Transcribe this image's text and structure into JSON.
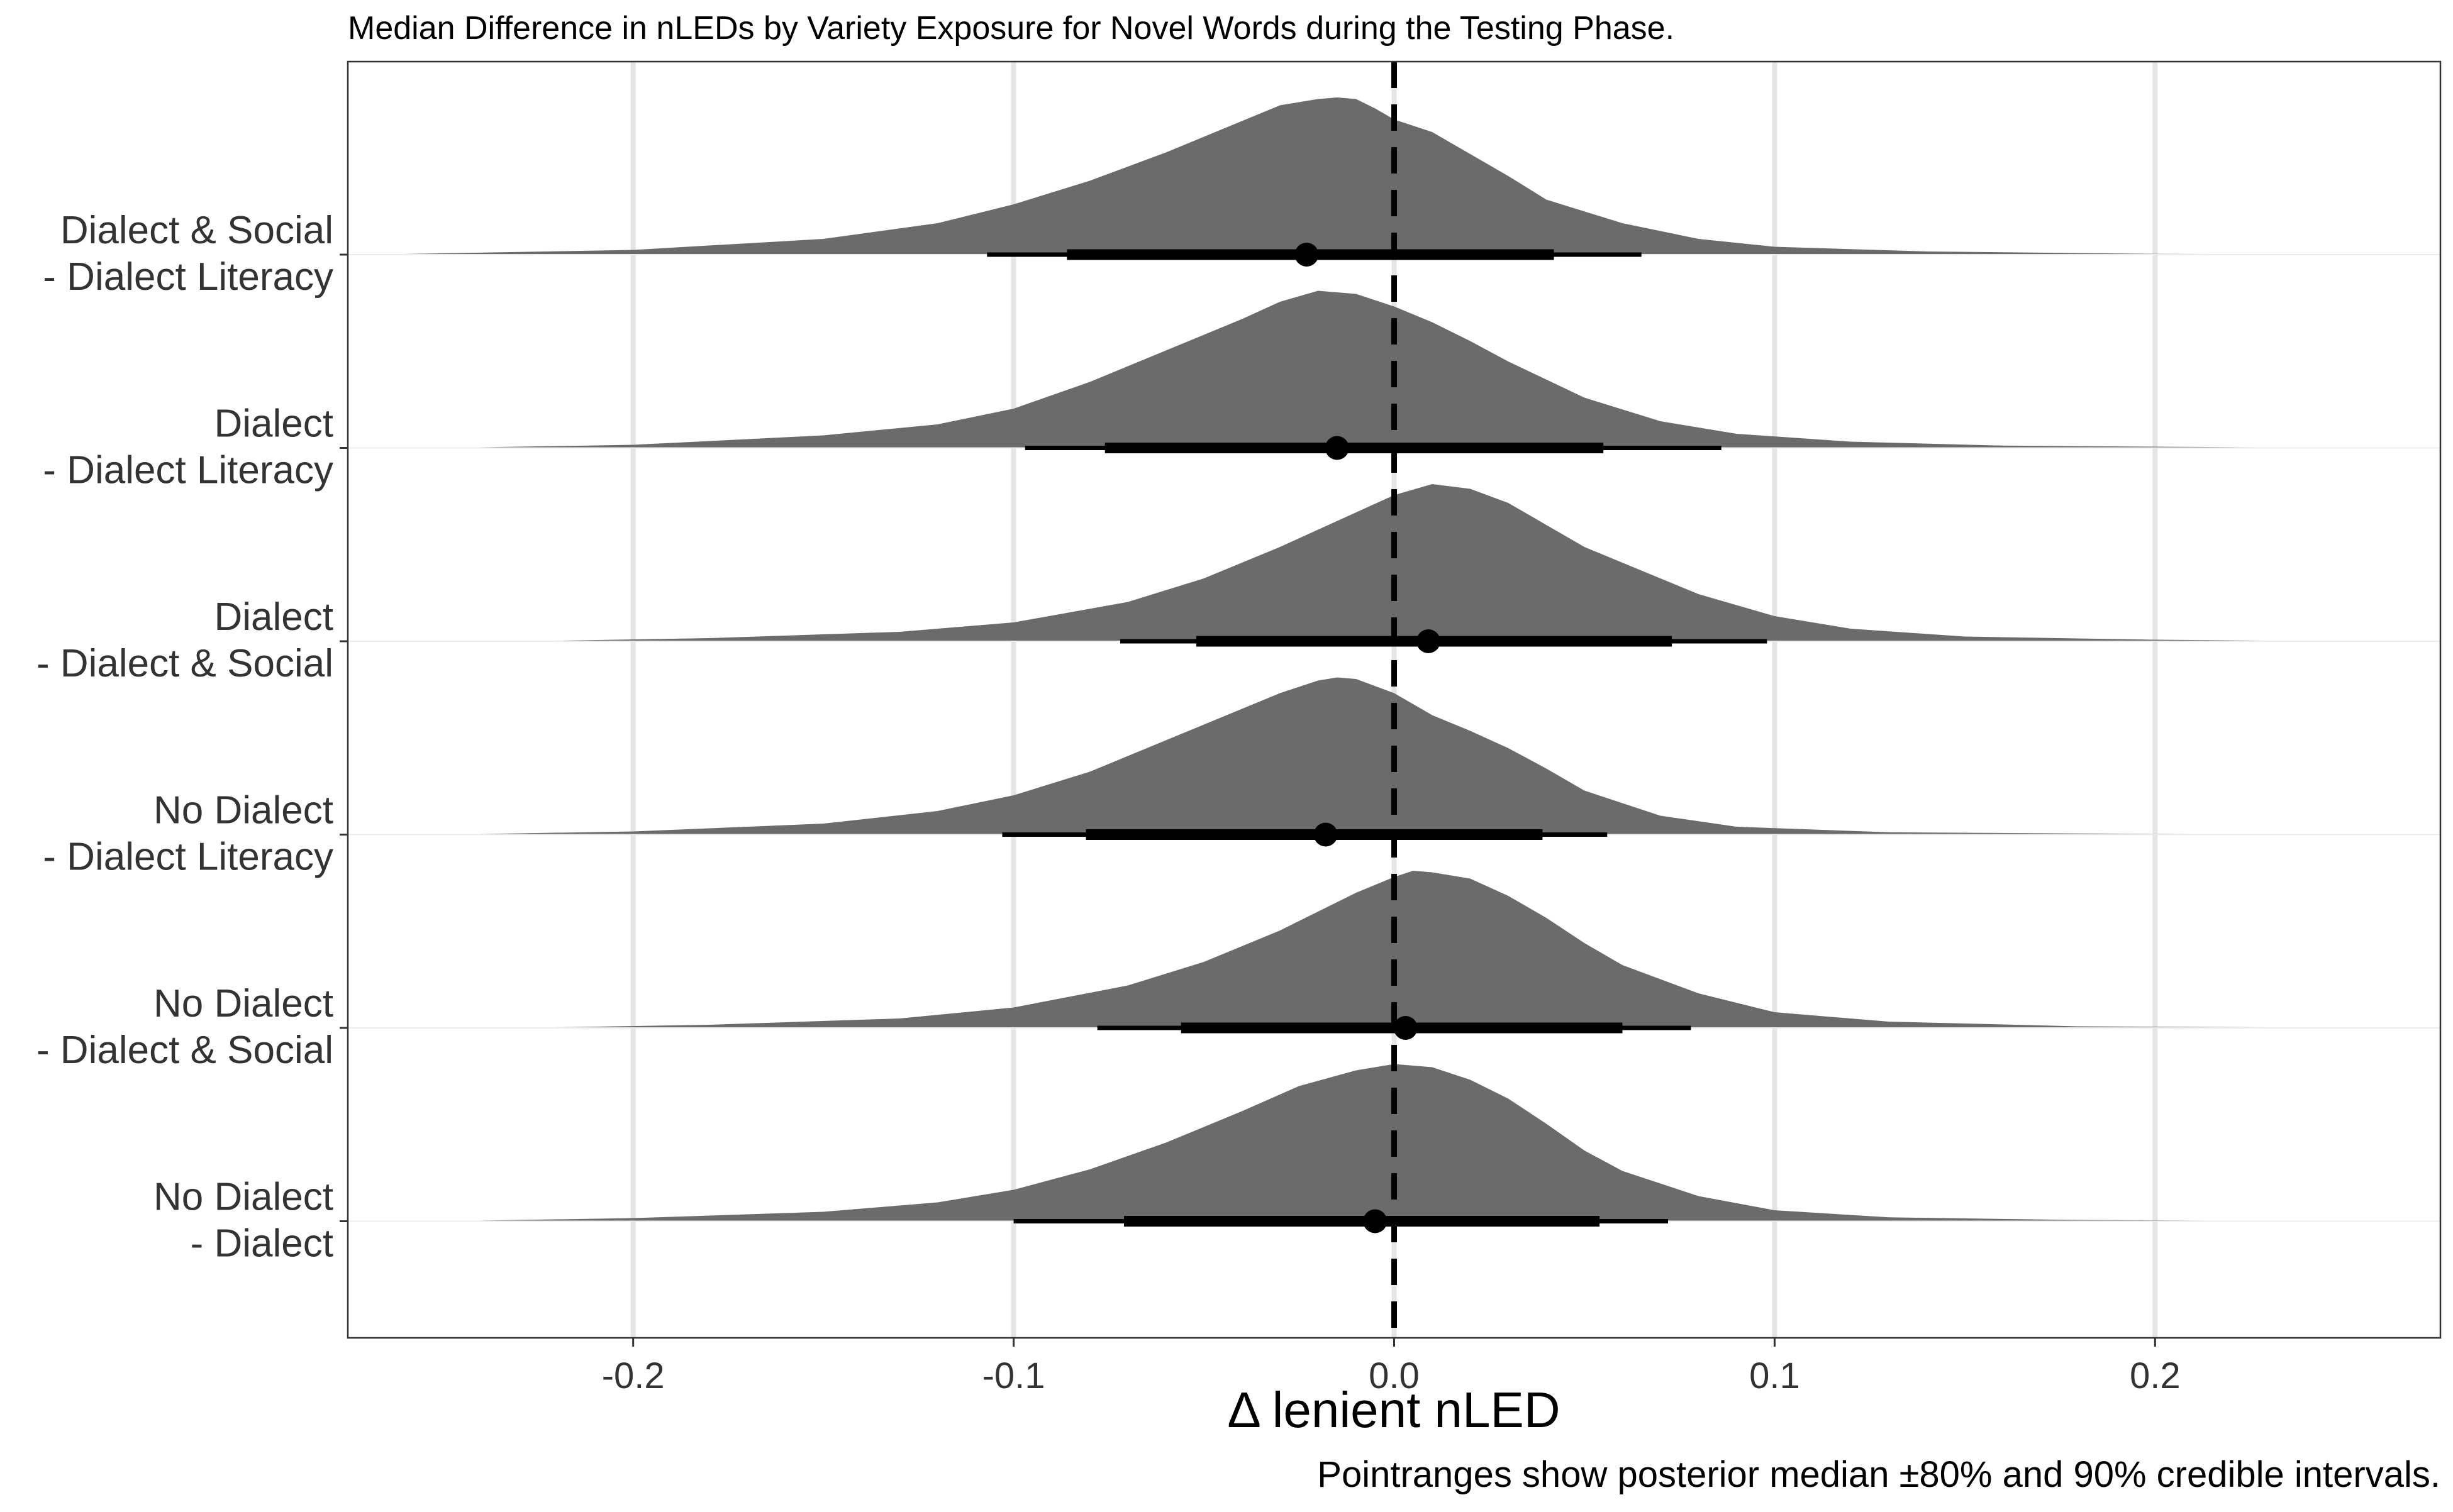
{
  "chart_data": {
    "type": "density-halfeye",
    "title": "Median Difference in nLEDs by Variety Exposure for Novel Words during the Testing Phase.",
    "xlabel": "Δ lenient nLED",
    "ylabel": "",
    "caption": "Pointranges show posterior median ±80% and 90% credible intervals.",
    "xlim": [
      -0.275,
      0.275
    ],
    "x_ticks": [
      -0.2,
      -0.1,
      0.0,
      0.1,
      0.2
    ],
    "x_tick_labels": [
      "-0.2",
      "-0.1",
      "0.0",
      "0.1",
      "0.2"
    ],
    "reference_line": {
      "x": 0.0,
      "style": "dashed"
    },
    "grid": {
      "vertical_major": true,
      "horizontal": false
    },
    "colors": {
      "density_fill": "#6b6b6b",
      "pointrange": "#000000",
      "grid": "#e5e5e5"
    },
    "series": [
      {
        "label_line1": "Dialect & Social",
        "label_line2": "- Dialect Literacy",
        "median": -0.023,
        "ci80": [
          -0.086,
          0.042
        ],
        "ci90": [
          -0.107,
          0.065
        ],
        "density": [
          [
            -0.27,
            0.0
          ],
          [
            -0.2,
            0.03
          ],
          [
            -0.15,
            0.1
          ],
          [
            -0.12,
            0.2
          ],
          [
            -0.1,
            0.32
          ],
          [
            -0.08,
            0.47
          ],
          [
            -0.06,
            0.65
          ],
          [
            -0.04,
            0.85
          ],
          [
            -0.03,
            0.95
          ],
          [
            -0.02,
            0.99
          ],
          [
            -0.015,
            1.0
          ],
          [
            -0.01,
            0.99
          ],
          [
            -0.005,
            0.93
          ],
          [
            0.0,
            0.86
          ],
          [
            0.01,
            0.78
          ],
          [
            0.02,
            0.64
          ],
          [
            0.03,
            0.5
          ],
          [
            0.04,
            0.35
          ],
          [
            0.06,
            0.2
          ],
          [
            0.08,
            0.1
          ],
          [
            0.1,
            0.05
          ],
          [
            0.14,
            0.02
          ],
          [
            0.2,
            0.005
          ],
          [
            0.27,
            0.0
          ]
        ]
      },
      {
        "label_line1": "Dialect",
        "label_line2": "- Dialect Literacy",
        "median": -0.015,
        "ci80": [
          -0.076,
          0.055
        ],
        "ci90": [
          -0.097,
          0.086
        ],
        "density": [
          [
            -0.25,
            0.0
          ],
          [
            -0.2,
            0.02
          ],
          [
            -0.15,
            0.08
          ],
          [
            -0.12,
            0.15
          ],
          [
            -0.1,
            0.25
          ],
          [
            -0.08,
            0.42
          ],
          [
            -0.06,
            0.62
          ],
          [
            -0.04,
            0.82
          ],
          [
            -0.03,
            0.93
          ],
          [
            -0.02,
            1.0
          ],
          [
            -0.01,
            0.98
          ],
          [
            0.0,
            0.9
          ],
          [
            0.01,
            0.8
          ],
          [
            0.02,
            0.68
          ],
          [
            0.03,
            0.55
          ],
          [
            0.05,
            0.32
          ],
          [
            0.07,
            0.17
          ],
          [
            0.09,
            0.09
          ],
          [
            0.12,
            0.04
          ],
          [
            0.16,
            0.015
          ],
          [
            0.22,
            0.005
          ],
          [
            0.27,
            0.0
          ]
        ]
      },
      {
        "label_line1": "Dialect",
        "label_line2": "- Dialect & Social",
        "median": 0.009,
        "ci80": [
          -0.052,
          0.073
        ],
        "ci90": [
          -0.072,
          0.098
        ],
        "density": [
          [
            -0.23,
            0.0
          ],
          [
            -0.18,
            0.02
          ],
          [
            -0.13,
            0.06
          ],
          [
            -0.1,
            0.12
          ],
          [
            -0.07,
            0.25
          ],
          [
            -0.05,
            0.4
          ],
          [
            -0.03,
            0.6
          ],
          [
            -0.01,
            0.82
          ],
          [
            0.0,
            0.93
          ],
          [
            0.01,
            1.0
          ],
          [
            0.02,
            0.97
          ],
          [
            0.03,
            0.88
          ],
          [
            0.04,
            0.74
          ],
          [
            0.05,
            0.6
          ],
          [
            0.07,
            0.4
          ],
          [
            0.08,
            0.3
          ],
          [
            0.1,
            0.16
          ],
          [
            0.12,
            0.08
          ],
          [
            0.15,
            0.03
          ],
          [
            0.2,
            0.01
          ],
          [
            0.25,
            0.0
          ]
        ]
      },
      {
        "label_line1": "No Dialect",
        "label_line2": "- Dialect Literacy",
        "median": -0.018,
        "ci80": [
          -0.081,
          0.039
        ],
        "ci90": [
          -0.103,
          0.056
        ],
        "density": [
          [
            -0.25,
            0.0
          ],
          [
            -0.2,
            0.02
          ],
          [
            -0.15,
            0.07
          ],
          [
            -0.12,
            0.15
          ],
          [
            -0.1,
            0.25
          ],
          [
            -0.08,
            0.4
          ],
          [
            -0.06,
            0.6
          ],
          [
            -0.04,
            0.8
          ],
          [
            -0.03,
            0.9
          ],
          [
            -0.02,
            0.98
          ],
          [
            -0.015,
            1.0
          ],
          [
            -0.01,
            0.99
          ],
          [
            0.0,
            0.9
          ],
          [
            0.01,
            0.76
          ],
          [
            0.02,
            0.66
          ],
          [
            0.03,
            0.55
          ],
          [
            0.04,
            0.42
          ],
          [
            0.05,
            0.28
          ],
          [
            0.07,
            0.12
          ],
          [
            0.09,
            0.05
          ],
          [
            0.13,
            0.015
          ],
          [
            0.2,
            0.005
          ],
          [
            0.25,
            0.0
          ]
        ]
      },
      {
        "label_line1": "No Dialect",
        "label_line2": "- Dialect & Social",
        "median": 0.003,
        "ci80": [
          -0.056,
          0.06
        ],
        "ci90": [
          -0.078,
          0.078
        ],
        "density": [
          [
            -0.23,
            0.0
          ],
          [
            -0.18,
            0.02
          ],
          [
            -0.13,
            0.06
          ],
          [
            -0.1,
            0.13
          ],
          [
            -0.07,
            0.27
          ],
          [
            -0.05,
            0.42
          ],
          [
            -0.03,
            0.62
          ],
          [
            -0.01,
            0.86
          ],
          [
            0.0,
            0.96
          ],
          [
            0.005,
            1.0
          ],
          [
            0.01,
            0.99
          ],
          [
            0.02,
            0.95
          ],
          [
            0.03,
            0.84
          ],
          [
            0.04,
            0.7
          ],
          [
            0.05,
            0.54
          ],
          [
            0.06,
            0.4
          ],
          [
            0.08,
            0.22
          ],
          [
            0.1,
            0.1
          ],
          [
            0.13,
            0.04
          ],
          [
            0.18,
            0.01
          ],
          [
            0.26,
            0.0
          ]
        ]
      },
      {
        "label_line1": "No Dialect",
        "label_line2": "- Dialect",
        "median": -0.005,
        "ci80": [
          -0.071,
          0.054
        ],
        "ci90": [
          -0.1,
          0.072
        ],
        "density": [
          [
            -0.25,
            0.0
          ],
          [
            -0.2,
            0.02
          ],
          [
            -0.15,
            0.06
          ],
          [
            -0.12,
            0.12
          ],
          [
            -0.1,
            0.2
          ],
          [
            -0.08,
            0.33
          ],
          [
            -0.06,
            0.5
          ],
          [
            -0.04,
            0.7
          ],
          [
            -0.025,
            0.86
          ],
          [
            -0.01,
            0.96
          ],
          [
            0.0,
            1.0
          ],
          [
            0.01,
            0.98
          ],
          [
            0.02,
            0.9
          ],
          [
            0.03,
            0.78
          ],
          [
            0.04,
            0.62
          ],
          [
            0.05,
            0.45
          ],
          [
            0.06,
            0.32
          ],
          [
            0.08,
            0.16
          ],
          [
            0.1,
            0.07
          ],
          [
            0.13,
            0.025
          ],
          [
            0.18,
            0.008
          ],
          [
            0.25,
            0.0
          ]
        ]
      }
    ]
  }
}
